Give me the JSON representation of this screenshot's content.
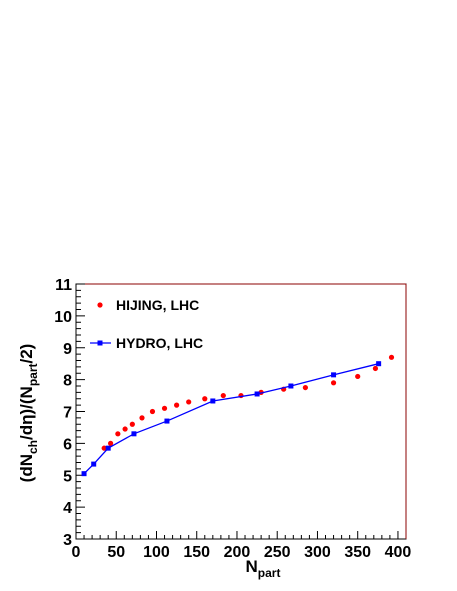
{
  "chart_data": {
    "type": "scatter",
    "xlabel": {
      "main": "N",
      "sub": "part"
    },
    "ylabel": {
      "p1": "(dN",
      "s1": "ch",
      "p2": "/dη)/(N",
      "s2": "part",
      "p3": "/2)"
    },
    "xlim": [
      0,
      410
    ],
    "ylim": [
      3,
      11
    ],
    "xticks": [
      0,
      50,
      100,
      150,
      200,
      250,
      300,
      350,
      400
    ],
    "yticks": [
      3,
      4,
      5,
      6,
      7,
      8,
      9,
      10,
      11
    ],
    "grid": false,
    "legend_position": "top-left",
    "series": [
      {
        "name": "HIJING, LHC",
        "style": "markers",
        "marker": "circle",
        "color": "#ff0000",
        "x": [
          35,
          43,
          52,
          61,
          70,
          82,
          95,
          110,
          125,
          140,
          160,
          183,
          205,
          230,
          258,
          285,
          320,
          350,
          372,
          392
        ],
        "y": [
          5.85,
          6.0,
          6.3,
          6.45,
          6.6,
          6.8,
          7.0,
          7.1,
          7.2,
          7.3,
          7.4,
          7.5,
          7.5,
          7.6,
          7.7,
          7.75,
          7.9,
          8.1,
          8.35,
          8.7
        ]
      },
      {
        "name": "HYDRO, LHC",
        "style": "line+markers",
        "marker": "square",
        "color": "#0000ff",
        "x": [
          10,
          22,
          40,
          72,
          113,
          170,
          225,
          267,
          320,
          376
        ],
        "y": [
          5.05,
          5.35,
          5.85,
          6.3,
          6.7,
          7.33,
          7.55,
          7.8,
          8.15,
          8.5
        ]
      }
    ]
  }
}
